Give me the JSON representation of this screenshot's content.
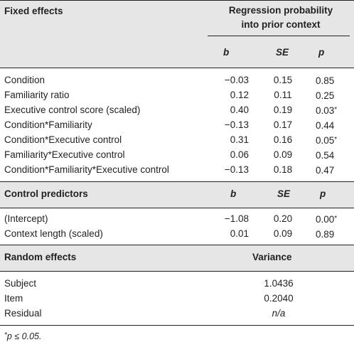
{
  "fixed": {
    "heading": "Fixed effects",
    "group_heading_line1": "Regression probability",
    "group_heading_line2": "into prior context",
    "col_b": "b",
    "col_se": "SE",
    "col_p": "p",
    "rows": [
      {
        "label": "Condition",
        "b": "−0.03",
        "se": "0.15",
        "p": "0.85",
        "star": ""
      },
      {
        "label": "Familiarity ratio",
        "b": "0.12",
        "se": "0.11",
        "p": "0.25",
        "star": ""
      },
      {
        "label": "Executive control score (scaled)",
        "b": "0.40",
        "se": "0.19",
        "p": "0.03",
        "star": "*"
      },
      {
        "label": "Condition*Familiarity",
        "b": "−0.13",
        "se": "0.17",
        "p": "0.44",
        "star": ""
      },
      {
        "label": "Condition*Executive control",
        "b": "0.31",
        "se": "0.16",
        "p": "0.05",
        "star": "*"
      },
      {
        "label": "Familiarity*Executive control",
        "b": "0.06",
        "se": "0.09",
        "p": "0.54",
        "star": ""
      },
      {
        "label": "Condition*Familiarity*Executive control",
        "b": "−0.13",
        "se": "0.18",
        "p": "0.47",
        "star": ""
      }
    ]
  },
  "control": {
    "heading": "Control predictors",
    "col_b": "b",
    "col_se": "SE",
    "col_p": "p",
    "rows": [
      {
        "label": "(Intercept)",
        "b": "−1.08",
        "se": "0.20",
        "p": "0.00",
        "star": "*"
      },
      {
        "label": "Context length (scaled)",
        "b": "0.01",
        "se": "0.09",
        "p": "0.89",
        "star": ""
      }
    ]
  },
  "random": {
    "heading": "Random effects",
    "col_variance": "Variance",
    "rows": [
      {
        "label": "Subject",
        "variance": "1.0436"
      },
      {
        "label": "Item",
        "variance": "0.2040"
      },
      {
        "label": "Residual",
        "variance": "n/a"
      }
    ]
  },
  "footnote": {
    "star": "*",
    "text": "p ≤ 0.05."
  }
}
